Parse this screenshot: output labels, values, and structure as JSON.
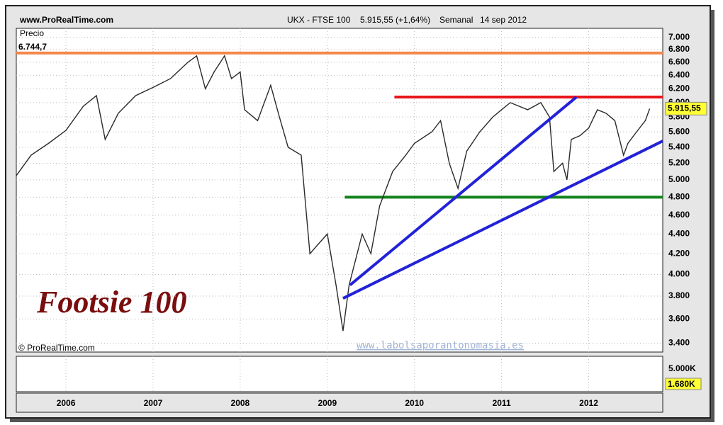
{
  "header": {
    "site": "www.ProRealTime.com",
    "instrument": "UKX - FTSE 100",
    "quote": "5.915,55 (+1,64%)",
    "period": "Semanal",
    "date": "14 sep 2012"
  },
  "chart_data": {
    "type": "line",
    "title": "Footsie 100",
    "y_label": "Precio",
    "copyright": "© ProRealTime.com",
    "watermark": "www.labolsaporantonomasia.es",
    "log_scale": true,
    "grid": true,
    "color": "#2a2a2a",
    "x": [
      2005.43,
      2005.6,
      2005.8,
      2006.0,
      2006.2,
      2006.35,
      2006.45,
      2006.6,
      2006.8,
      2007.0,
      2007.2,
      2007.4,
      2007.5,
      2007.6,
      2007.7,
      2007.82,
      2007.9,
      2008.0,
      2008.05,
      2008.2,
      2008.35,
      2008.45,
      2008.55,
      2008.7,
      2008.8,
      2008.9,
      2009.0,
      2009.1,
      2009.18,
      2009.25,
      2009.4,
      2009.5,
      2009.6,
      2009.75,
      2009.9,
      2010.0,
      2010.2,
      2010.3,
      2010.4,
      2010.5,
      2010.6,
      2010.75,
      2010.9,
      2011.0,
      2011.1,
      2011.3,
      2011.45,
      2011.55,
      2011.6,
      2011.7,
      2011.75,
      2011.8,
      2011.9,
      2012.0,
      2012.1,
      2012.2,
      2012.3,
      2012.4,
      2012.45,
      2012.55,
      2012.65,
      2012.7
    ],
    "values": [
      5050,
      5300,
      5450,
      5620,
      5950,
      6100,
      5500,
      5850,
      6100,
      6220,
      6350,
      6600,
      6700,
      6200,
      6450,
      6700,
      6350,
      6450,
      5900,
      5750,
      6250,
      5800,
      5400,
      5300,
      4200,
      4300,
      4400,
      3900,
      3500,
      3900,
      4400,
      4200,
      4700,
      5100,
      5300,
      5450,
      5600,
      5750,
      5200,
      4900,
      5350,
      5600,
      5800,
      5900,
      6000,
      5900,
      6000,
      5800,
      5100,
      5200,
      5000,
      5500,
      5550,
      5650,
      5900,
      5850,
      5750,
      5300,
      5450,
      5600,
      5750,
      5915.55
    ],
    "last_label": "5.915,55",
    "xlim": [
      2005.43,
      2012.85
    ],
    "xticks": [
      2006,
      2007,
      2008,
      2009,
      2010,
      2011,
      2012
    ],
    "ylim": [
      3330,
      7150
    ],
    "yticks": [
      {
        "value": 3400,
        "label": "3.400"
      },
      {
        "value": 3600,
        "label": "3.600"
      },
      {
        "value": 3800,
        "label": "3.800"
      },
      {
        "value": 4000,
        "label": "4.000"
      },
      {
        "value": 4200,
        "label": "4.200"
      },
      {
        "value": 4400,
        "label": "4.400"
      },
      {
        "value": 4600,
        "label": "4.600"
      },
      {
        "value": 4800,
        "label": "4.800"
      },
      {
        "value": 5000,
        "label": "5.000"
      },
      {
        "value": 5200,
        "label": "5.200"
      },
      {
        "value": 5400,
        "label": "5.400"
      },
      {
        "value": 5600,
        "label": "5.600"
      },
      {
        "value": 5800,
        "label": "5.800"
      },
      {
        "value": 6000,
        "label": "6.000"
      },
      {
        "value": 6200,
        "label": "6.200"
      },
      {
        "value": 6400,
        "label": "6.400"
      },
      {
        "value": 6600,
        "label": "6.600"
      },
      {
        "value": 6800,
        "label": "6.800"
      },
      {
        "value": 7000,
        "label": "7.000"
      }
    ],
    "hlines": [
      {
        "value": 6744.7,
        "label": "6.744,7",
        "color": "#f4874b",
        "from": 2005.43
      },
      {
        "value": 6080,
        "color": "#e8161b",
        "from": 2009.77
      },
      {
        "value": 4800,
        "color": "#12821b",
        "from": 2009.2
      }
    ],
    "trendlines": [
      {
        "x": [
          2009.26,
          2011.86
        ],
        "y": [
          3900,
          6080
        ],
        "color": "#2222d8"
      },
      {
        "x": [
          2009.18,
          2012.85
        ],
        "y": [
          3780,
          5480
        ],
        "color": "#2222d8"
      }
    ],
    "volume_axis": {
      "label": "5.000K",
      "last": "1.680K"
    }
  }
}
